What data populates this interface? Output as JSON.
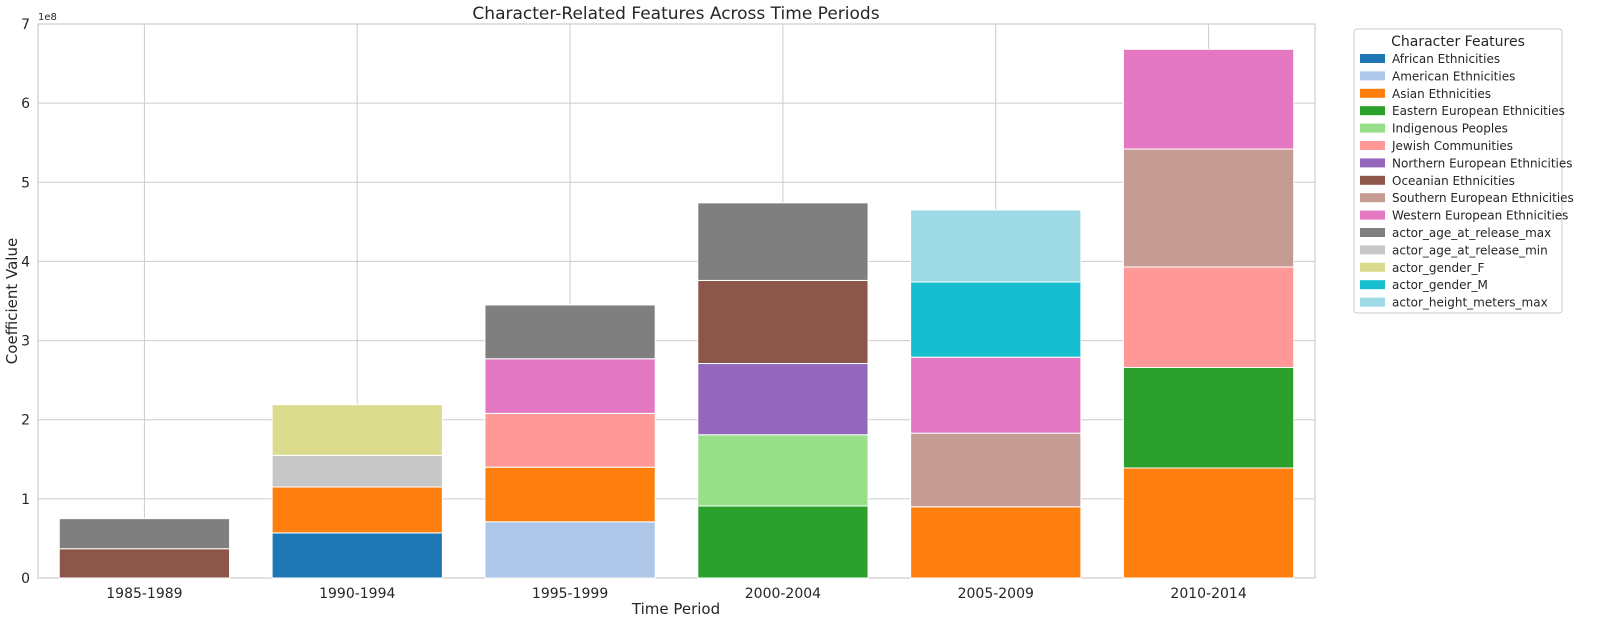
{
  "chart_data": {
    "type": "bar",
    "stacked": true,
    "title": "Character-Related Features Across Time Periods",
    "xlabel": "Time Period",
    "ylabel": "Coefficient Value",
    "y_exponent_label": "1e8",
    "y_scale_factor": 100000000,
    "ylim": [
      0,
      7
    ],
    "yticks": [
      "0",
      "1",
      "2",
      "3",
      "4",
      "5",
      "6",
      "7"
    ],
    "grid": true,
    "legend_placement": "outside-right-top",
    "legend_title": "Character Features",
    "categories": [
      "1985-1989",
      "1990-1994",
      "1995-1999",
      "2000-2004",
      "2005-2009",
      "2010-2014"
    ],
    "series": [
      {
        "name": "African Ethnicities",
        "color": "#1f77b4",
        "values": [
          0,
          0.57,
          0,
          0,
          0,
          0
        ]
      },
      {
        "name": "American Ethnicities",
        "color": "#aec7e8",
        "values": [
          0,
          0,
          0.71,
          0,
          0,
          0
        ]
      },
      {
        "name": "Asian Ethnicities",
        "color": "#ff7f0e",
        "values": [
          0,
          0.58,
          0.69,
          0,
          0.9,
          1.39
        ]
      },
      {
        "name": "Eastern European Ethnicities",
        "color": "#2ca02c",
        "values": [
          0,
          0,
          0,
          0.91,
          0,
          1.27
        ]
      },
      {
        "name": "Indigenous Peoples",
        "color": "#98df8a",
        "values": [
          0,
          0,
          0,
          0.9,
          0,
          0
        ]
      },
      {
        "name": "Jewish Communities",
        "color": "#ff9896",
        "values": [
          0,
          0,
          0.68,
          0,
          0,
          1.27
        ]
      },
      {
        "name": "Northern European Ethnicities",
        "color": "#9467bd",
        "values": [
          0,
          0,
          0,
          0.9,
          0,
          0
        ]
      },
      {
        "name": "Oceanian Ethnicities",
        "color": "#8c564b",
        "values": [
          0.37,
          0,
          0,
          1.05,
          0,
          0
        ]
      },
      {
        "name": "Southern European Ethnicities",
        "color": "#c49c94",
        "values": [
          0,
          0,
          0,
          0,
          0.93,
          1.49
        ]
      },
      {
        "name": "Western European Ethnicities",
        "color": "#e377c2",
        "values": [
          0,
          0,
          0.69,
          0,
          0.96,
          1.26
        ]
      },
      {
        "name": "actor_age_at_release_max",
        "color": "#7f7f7f",
        "values": [
          0.38,
          0,
          0.68,
          0.98,
          0,
          0
        ]
      },
      {
        "name": "actor_age_at_release_min",
        "color": "#c7c7c7",
        "values": [
          0,
          0.4,
          0,
          0,
          0,
          0
        ]
      },
      {
        "name": "actor_gender_F",
        "color": "#dbdb8d",
        "values": [
          0,
          0.64,
          0,
          0,
          0,
          0
        ]
      },
      {
        "name": "actor_gender_M",
        "color": "#17becf",
        "values": [
          0,
          0,
          0,
          0,
          0.95,
          0
        ]
      },
      {
        "name": "actor_height_meters_max",
        "color": "#9edae5",
        "values": [
          0,
          0,
          0,
          0,
          0.91,
          0
        ]
      }
    ]
  }
}
